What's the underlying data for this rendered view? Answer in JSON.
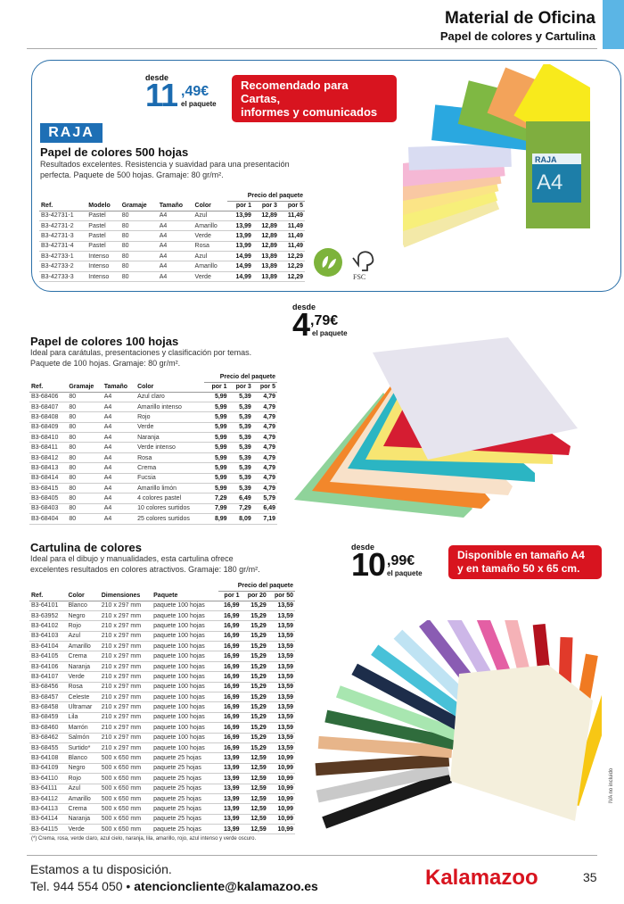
{
  "header": {
    "title": "Material de Oficina",
    "subtitle": "Papel de colores y Cartulina"
  },
  "colors": {
    "accent_blue": "#1b6bb0",
    "tab_blue": "#5bb5e5",
    "badge_red": "#d8141f",
    "brand_red": "#d8141f"
  },
  "product1": {
    "brand_logo": "RAJA",
    "price": {
      "desde": "desde",
      "integer": "11",
      "cents": ",49€",
      "unit": "el paquete"
    },
    "badge": [
      "Recomendado para Cartas,",
      "informes y comunicados"
    ],
    "title": "Papel de colores 500 hojas",
    "description": [
      "Resultados excelentes. Resistencia y suavidad para una presentación",
      "perfecta. Paquete de 500 hojas. Gramaje: 80 gr/m²."
    ],
    "table": {
      "caption": "Precio del paquete",
      "headers": [
        "Ref.",
        "Modelo",
        "Gramaje",
        "Tamaño",
        "Color",
        "por 1",
        "por 3",
        "por 5"
      ],
      "rows": [
        [
          "B3-42731-1",
          "Pastel",
          "80",
          "A4",
          "Azul",
          "13,99",
          "12,89",
          "11,49"
        ],
        [
          "B3-42731-2",
          "Pastel",
          "80",
          "A4",
          "Amarillo",
          "13,99",
          "12,89",
          "11,49"
        ],
        [
          "B3-42731-3",
          "Pastel",
          "80",
          "A4",
          "Verde",
          "13,99",
          "12,89",
          "11,49"
        ],
        [
          "B3-42731-4",
          "Pastel",
          "80",
          "A4",
          "Rosa",
          "13,99",
          "12,89",
          "11,49"
        ],
        [
          "B3-42733-1",
          "Intenso",
          "80",
          "A4",
          "Azul",
          "14,99",
          "13,89",
          "12,29"
        ],
        [
          "B3-42733-2",
          "Intenso",
          "80",
          "A4",
          "Amarillo",
          "14,99",
          "13,89",
          "12,29"
        ],
        [
          "B3-42733-3",
          "Intenso",
          "80",
          "A4",
          "Verde",
          "14,99",
          "13,89",
          "12,29"
        ]
      ]
    },
    "icons": [
      "eco-leaf-icon",
      "fsc-tree-icon"
    ],
    "fsc_label": "FSC",
    "package_label": "RAJA A4"
  },
  "product2": {
    "price": {
      "desde": "desde",
      "integer": "4",
      "cents": ",79€",
      "unit": "el paquete"
    },
    "title": "Papel de colores 100 hojas",
    "description": [
      "Ideal para carátulas, presentaciones y clasificación por temas.",
      "Paquete de 100 hojas. Gramaje: 80 gr/m²."
    ],
    "table": {
      "caption": "Precio del paquete",
      "headers": [
        "Ref.",
        "Gramaje",
        "Tamaño",
        "Color",
        "por 1",
        "por 3",
        "por 5"
      ],
      "rows": [
        [
          "B3-68406",
          "80",
          "A4",
          "Azul claro",
          "5,99",
          "5,39",
          "4,79"
        ],
        [
          "B3-68407",
          "80",
          "A4",
          "Amarillo intenso",
          "5,99",
          "5,39",
          "4,79"
        ],
        [
          "B3-68408",
          "80",
          "A4",
          "Rojo",
          "5,99",
          "5,39",
          "4,79"
        ],
        [
          "B3-68409",
          "80",
          "A4",
          "Verde",
          "5,99",
          "5,39",
          "4,79"
        ],
        [
          "B3-68410",
          "80",
          "A4",
          "Naranja",
          "5,99",
          "5,39",
          "4,79"
        ],
        [
          "B3-68411",
          "80",
          "A4",
          "Verde intenso",
          "5,99",
          "5,39",
          "4,79"
        ],
        [
          "B3-68412",
          "80",
          "A4",
          "Rosa",
          "5,99",
          "5,39",
          "4,79"
        ],
        [
          "B3-68413",
          "80",
          "A4",
          "Crema",
          "5,99",
          "5,39",
          "4,79"
        ],
        [
          "B3-68414",
          "80",
          "A4",
          "Fucsia",
          "5,99",
          "5,39",
          "4,79"
        ],
        [
          "B3-68415",
          "80",
          "A4",
          "Amarillo limón",
          "5,99",
          "5,39",
          "4,79"
        ],
        [
          "B3-68405",
          "80",
          "A4",
          "4 colores pastel",
          "7,29",
          "6,49",
          "5,79"
        ],
        [
          "B3-68403",
          "80",
          "A4",
          "10 colores surtidos",
          "7,99",
          "7,29",
          "6,49"
        ],
        [
          "B3-68404",
          "80",
          "A4",
          "25 colores surtidos",
          "8,99",
          "8,09",
          "7,19"
        ]
      ]
    }
  },
  "product3": {
    "price": {
      "desde": "desde",
      "integer": "10",
      "cents": ",99€",
      "unit": "el paquete"
    },
    "badge": [
      "Disponible en tamaño A4",
      "y en tamaño 50 x 65 cm."
    ],
    "title": "Cartulina de colores",
    "description": [
      "Ideal para el dibujo y manualidades, esta cartulina ofrece",
      "excelentes resultados en colores atractivos. Gramaje: 180 gr/m²."
    ],
    "table": {
      "caption": "Precio del paquete",
      "headers": [
        "Ref.",
        "Color",
        "Dimensiones",
        "Paquete",
        "por 1",
        "por 20",
        "por 50"
      ],
      "rows": [
        [
          "B3-64101",
          "Blanco",
          "210 x 297 mm",
          "paquete 100 hojas",
          "16,99",
          "15,29",
          "13,59"
        ],
        [
          "B3-63952",
          "Negro",
          "210 x 297 mm",
          "paquete 100 hojas",
          "16,99",
          "15,29",
          "13,59"
        ],
        [
          "B3-64102",
          "Rojo",
          "210 x 297 mm",
          "paquete 100 hojas",
          "16,99",
          "15,29",
          "13,59"
        ],
        [
          "B3-64103",
          "Azul",
          "210 x 297 mm",
          "paquete 100 hojas",
          "16,99",
          "15,29",
          "13,59"
        ],
        [
          "B3-64104",
          "Amarillo",
          "210 x 297 mm",
          "paquete 100 hojas",
          "16,99",
          "15,29",
          "13,59"
        ],
        [
          "B3-64105",
          "Crema",
          "210 x 297 mm",
          "paquete 100 hojas",
          "16,99",
          "15,29",
          "13,59"
        ],
        [
          "B3-64106",
          "Naranja",
          "210 x 297 mm",
          "paquete 100 hojas",
          "16,99",
          "15,29",
          "13,59"
        ],
        [
          "B3-64107",
          "Verde",
          "210 x 297 mm",
          "paquete 100 hojas",
          "16,99",
          "15,29",
          "13,59"
        ],
        [
          "B3-68456",
          "Rosa",
          "210 x 297 mm",
          "paquete 100 hojas",
          "16,99",
          "15,29",
          "13,59"
        ],
        [
          "B3-68457",
          "Celeste",
          "210 x 297 mm",
          "paquete 100 hojas",
          "16,99",
          "15,29",
          "13,59"
        ],
        [
          "B3-68458",
          "Ultramar",
          "210 x 297 mm",
          "paquete 100 hojas",
          "16,99",
          "15,29",
          "13,59"
        ],
        [
          "B3-68459",
          "Lila",
          "210 x 297 mm",
          "paquete 100 hojas",
          "16,99",
          "15,29",
          "13,59"
        ],
        [
          "B3-68460",
          "Marrón",
          "210 x 297 mm",
          "paquete 100 hojas",
          "16,99",
          "15,29",
          "13,59"
        ],
        [
          "B3-68462",
          "Salmón",
          "210 x 297 mm",
          "paquete 100 hojas",
          "16,99",
          "15,29",
          "13,59"
        ],
        [
          "B3-68455",
          "Surtido*",
          "210 x 297 mm",
          "paquete 100 hojas",
          "16,99",
          "15,29",
          "13,59"
        ],
        [
          "B3-64108",
          "Blanco",
          "500 x 650 mm",
          "paquete 25 hojas",
          "13,99",
          "12,59",
          "10,99"
        ],
        [
          "B3-64109",
          "Negro",
          "500 x 650 mm",
          "paquete 25 hojas",
          "13,99",
          "12,59",
          "10,99"
        ],
        [
          "B3-64110",
          "Rojo",
          "500 x 650 mm",
          "paquete 25 hojas",
          "13,99",
          "12,59",
          "10,99"
        ],
        [
          "B3-64111",
          "Azul",
          "500 x 650 mm",
          "paquete 25 hojas",
          "13,99",
          "12,59",
          "10,99"
        ],
        [
          "B3-64112",
          "Amarillo",
          "500 x 650 mm",
          "paquete 25 hojas",
          "13,99",
          "12,59",
          "10,99"
        ],
        [
          "B3-64113",
          "Crema",
          "500 x 650 mm",
          "paquete 25 hojas",
          "13,99",
          "12,59",
          "10,99"
        ],
        [
          "B3-64114",
          "Naranja",
          "500 x 650 mm",
          "paquete 25 hojas",
          "13,99",
          "12,59",
          "10,99"
        ],
        [
          "B3-64115",
          "Verde",
          "500 x 650 mm",
          "paquete 25 hojas",
          "13,99",
          "12,59",
          "10,99"
        ]
      ]
    },
    "footnote": "(*) Crema, rosa, verde claro, azul cielo, naranja, lila, amarillo, rojo, azul intenso y verde oscuro."
  },
  "side_note": "IVA no incluido",
  "footer": {
    "line1": "Estamos a tu disposición.",
    "phone": "Tel. 944 554 050 •",
    "email": "atencioncliente@kalamazoo.es",
    "brand": "Kalamazoo",
    "page_number": "35"
  }
}
